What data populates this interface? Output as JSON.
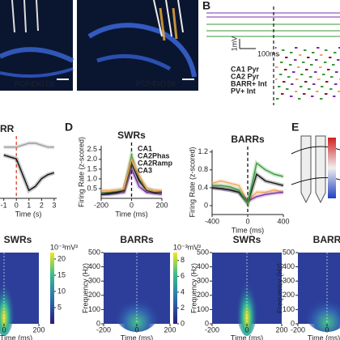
{
  "images": [
    {
      "stain": [
        "PCP4",
        "DiO",
        "DiI"
      ]
    },
    {
      "stain": [
        "PCP4",
        "DiO",
        "DiI"
      ]
    }
  ],
  "panel_b": {
    "label": "B",
    "scale_time": "100ms",
    "scale_volt": "1mV",
    "legend": [
      {
        "text": "CA1 Pyr",
        "color": "#7b2fa8"
      },
      {
        "text": "CA2 Pyr",
        "color": "#3a9a3a"
      },
      {
        "text": "BARR+ Int",
        "color": "#f2a65a"
      },
      {
        "text": "PV+ Int",
        "color": "#8b1a1a"
      }
    ]
  },
  "panel_d_label": "D",
  "panel_e_label": "E",
  "chart_data": [
    {
      "type": "line",
      "title": "RR",
      "xlabel": "Time (s)",
      "x": [
        -1,
        -0.5,
        0,
        0.5,
        1,
        1.5,
        2,
        2.5,
        3
      ],
      "xlim": [
        -1.3,
        3.2
      ],
      "xticks": [
        -1,
        0,
        1,
        2,
        3
      ],
      "ylim": [
        -0.5,
        1
      ],
      "zero_line_color": "#e0442a",
      "series": [
        {
          "color": "#999999",
          "values": [
            0.8,
            0.8,
            0.8,
            0.85,
            0.9,
            0.9,
            0.85,
            0.8,
            0.8
          ]
        },
        {
          "color": "#111111",
          "values": [
            0.6,
            0.55,
            0.5,
            0.1,
            -0.3,
            -0.2,
            0,
            0.1,
            0.15
          ]
        }
      ]
    },
    {
      "type": "line",
      "title": "SWRs",
      "xlabel": "Time (ms)",
      "ylabel": "Firing Rate (z-scored)",
      "x": [
        -200,
        -150,
        -100,
        -50,
        0,
        50,
        100,
        150,
        200
      ],
      "xlim": [
        -200,
        200
      ],
      "xticks": [
        -200,
        0,
        200
      ],
      "ylim": [
        0,
        2.7
      ],
      "yticks": [
        {
          "value": 0.5,
          "label": "0.5"
        },
        {
          "value": 1,
          "label": "1.0"
        },
        {
          "value": 1.5,
          "label": "1.5"
        },
        {
          "value": 2,
          "label": "2.0"
        },
        {
          "value": 2.5,
          "label": "2.5"
        }
      ],
      "zero_line_color": "#111111",
      "series": [
        {
          "name": "CA1",
          "color": "#7b2fa8",
          "values": [
            0.2,
            0.2,
            0.25,
            0.3,
            1.5,
            0.6,
            0.3,
            0.25,
            0.2
          ]
        },
        {
          "name": "CA2Phas",
          "color": "#3a9a3a",
          "values": [
            0.3,
            0.3,
            0.35,
            0.4,
            2.2,
            1.0,
            0.5,
            0.4,
            0.35
          ]
        },
        {
          "name": "CA2Ramp",
          "color": "#111111",
          "values": [
            0.2,
            0.25,
            0.3,
            0.4,
            1.8,
            0.9,
            0.4,
            0.3,
            0.3
          ]
        },
        {
          "name": "CA3",
          "color": "#f2a65a",
          "values": [
            0.4,
            0.4,
            0.45,
            0.5,
            2.0,
            1.2,
            0.5,
            0.4,
            0.4
          ]
        }
      ]
    },
    {
      "type": "line",
      "title": "BARRs",
      "xlabel": "Time (ms)",
      "ylabel": "Firing Rate (z-scored)",
      "x": [
        -400,
        -300,
        -200,
        -100,
        0,
        100,
        200,
        300,
        400
      ],
      "xlim": [
        -400,
        400
      ],
      "xticks": [
        -400,
        0,
        400
      ],
      "ylim": [
        -0.2,
        1.25
      ],
      "yticks": [
        0,
        0.4,
        0.8,
        1.2
      ],
      "zero_line_color": "#111111",
      "series": [
        {
          "color": "#f2a65a",
          "values": [
            0.5,
            0.55,
            0.5,
            0.45,
            0.1,
            0.3,
            0.3,
            0.35,
            0.3
          ]
        },
        {
          "color": "#7b2fa8",
          "values": [
            0.4,
            0.38,
            0.35,
            0.3,
            0.1,
            0.2,
            0.25,
            0.28,
            0.3
          ]
        },
        {
          "color": "#111111",
          "values": [
            0.4,
            0.38,
            0.35,
            0.3,
            0.05,
            0.7,
            0.55,
            0.5,
            0.45
          ]
        },
        {
          "color": "#3a9a3a",
          "values": [
            0.45,
            0.45,
            0.42,
            0.35,
            0.05,
            0.95,
            0.8,
            0.7,
            0.65
          ]
        }
      ]
    }
  ],
  "heatmaps": [
    {
      "title": "SWRs",
      "xlabel": "Time (ms)",
      "xlim": [
        -200,
        200
      ],
      "xticks": [
        0,
        200
      ],
      "cbar_label": "10⁻³mV²",
      "clim": [
        0,
        22
      ],
      "cticks": [
        5,
        10,
        15,
        20
      ]
    },
    {
      "title": "BARRs",
      "xlabel": "Time (ms)",
      "ylabel": "Frequency (Hz)",
      "xlim": [
        -200,
        200
      ],
      "xticks": [
        -200,
        0,
        200
      ],
      "ylim": [
        0,
        500
      ],
      "yticks": [
        0,
        100,
        200,
        300,
        400,
        500
      ],
      "cbar_label": "10⁻³mV²",
      "clim": [
        0,
        9
      ],
      "cticks": [
        0,
        2,
        4,
        6,
        8
      ]
    },
    {
      "title": "SWRs",
      "xlabel": "Time (ms)",
      "ylabel": "Frequency (Hz)",
      "xlim": [
        -200,
        200
      ],
      "xticks": [
        -200,
        0,
        200
      ],
      "ylim": [
        0,
        500
      ],
      "yticks": [
        0,
        100,
        200,
        300,
        400,
        500
      ]
    },
    {
      "title": "BARR",
      "xlabel": "Time (ms)",
      "ylabel": "Frequency (Hz)",
      "xlim": [
        -200,
        200
      ],
      "xticks": [
        -200,
        0
      ],
      "ylim": [
        0,
        500
      ],
      "yticks": [
        0,
        100,
        200,
        300,
        400,
        500
      ]
    }
  ]
}
